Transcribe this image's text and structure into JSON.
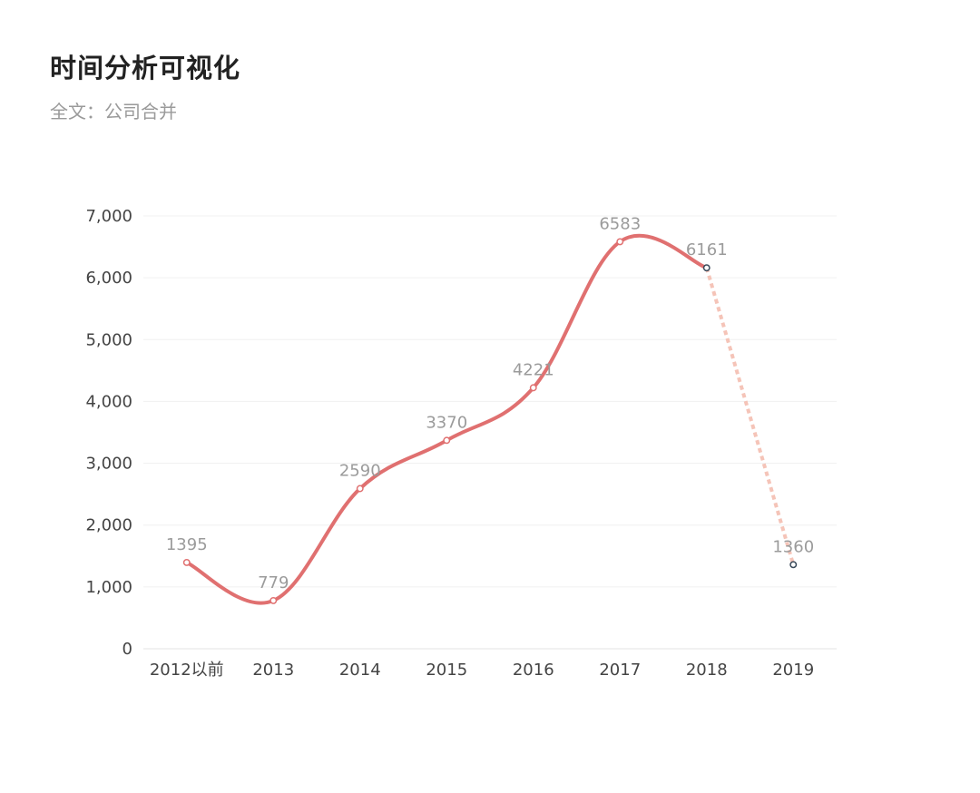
{
  "header": {
    "title": "时间分析可视化",
    "subtitle": "全文：公司合并"
  },
  "colors": {
    "line": "#e07070",
    "projection": "#f5c4b8",
    "grid": "#f0f0f0",
    "axis": "#e3e3e3",
    "marker_fill": "#ffffff",
    "marker_stroke_dark": "#3a4a5a",
    "label": "#9b9b9b"
  },
  "chart_data": {
    "type": "line",
    "categories": [
      "2012以前",
      "2013",
      "2014",
      "2015",
      "2016",
      "2017",
      "2018",
      "2019"
    ],
    "values": [
      1395,
      779,
      2590,
      3370,
      4221,
      6583,
      6161,
      1360
    ],
    "data_labels": [
      "1395",
      "779",
      "2590",
      "3370",
      "4221",
      "6583",
      "6161",
      "1360"
    ],
    "solid_until_index": 6,
    "dashed_from_index": 6,
    "ylim": [
      0,
      7000
    ],
    "yticks": [
      0,
      1000,
      2000,
      3000,
      4000,
      5000,
      6000,
      7000
    ],
    "ytick_labels": [
      "0",
      "1,000",
      "2,000",
      "3,000",
      "4,000",
      "5,000",
      "6,000",
      "7,000"
    ],
    "smooth": true,
    "grid": true,
    "title": "",
    "xlabel": "",
    "ylabel": ""
  }
}
